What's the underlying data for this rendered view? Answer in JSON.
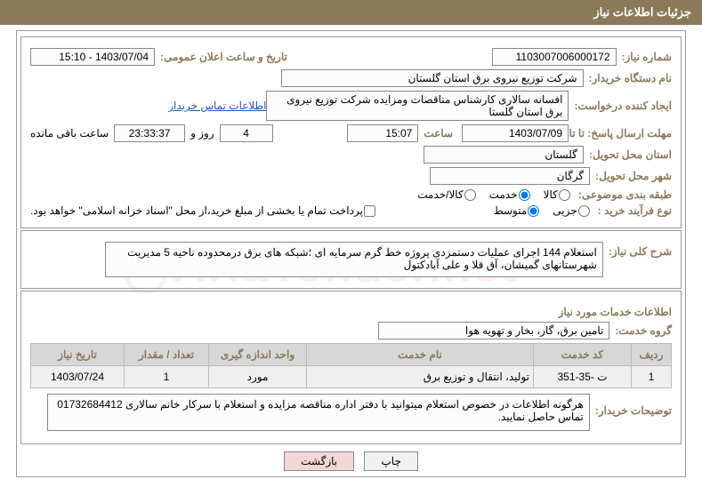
{
  "header": {
    "title": "جزئیات اطلاعات نیاز"
  },
  "main": {
    "need_no_label": "شماره نیاز:",
    "need_no": "1103007006000172",
    "announce_label": "تاریخ و ساعت اعلان عمومی:",
    "announce": "1403/07/04 - 15:10",
    "buyer_org_label": "نام دستگاه خریدار:",
    "buyer_org": "شرکت توزیع نیروی برق استان گلستان",
    "requester_label": "ایجاد کننده درخواست:",
    "requester": "افسانه سالاری کارشناس مناقصات ومزایده شرکت توزیع نیروی برق استان گلستا",
    "contact_link": "اطلاعات تماس خریدار",
    "deadline_label": "مهلت ارسال پاسخ: تا تاریخ:",
    "deadline_date": "1403/07/09",
    "time_label": "ساعت",
    "deadline_time": "15:07",
    "remaining_days": "4",
    "days_and": "روز و",
    "remaining_time": "23:33:37",
    "remaining_label": "ساعت باقی مانده",
    "province_label": "استان محل تحویل:",
    "province": "گلستان",
    "city_label": "شهر محل تحویل:",
    "city": "گرگان",
    "category_label": "طبقه بندی موضوعی:",
    "cat_goods": "کالا",
    "cat_service": "خدمت",
    "cat_goods_service": "کالا/خدمت",
    "process_label": "نوع فرآیند خرید :",
    "proc_minor": "جزیی",
    "proc_medium": "متوسط",
    "payment_note": "پرداخت تمام یا بخشی از مبلغ خرید،از محل \"اسناد خزانه اسلامی\" خواهد بود.",
    "overview_label": "شرح کلی نیاز:",
    "overview": "استعلام 144 اجرای عملیات دستمزدی پروژه خط گرم سرمایه ای  ؛شبکه های برق درمحدوده ناحیه 5 مدیریت شهرستانهای گمیشان، آق قلا و علی آبادکتول"
  },
  "services": {
    "section_title": "اطلاعات خدمات مورد نیاز",
    "group_label": "گروه خدمت:",
    "group": "تامین برق، گاز، بخار و تهویه هوا",
    "columns": [
      "ردیف",
      "کد خدمت",
      "نام خدمت",
      "واحد اندازه گیری",
      "تعداد / مقدار",
      "تاریخ نیاز"
    ],
    "col_widths": [
      "45px",
      "110px",
      "auto",
      "110px",
      "95px",
      "105px"
    ],
    "rows": [
      [
        "1",
        "ت -35-351",
        "تولید، انتقال و توزیع برق",
        "مورد",
        "1",
        "1403/07/24"
      ]
    ],
    "buyer_notes_label": "توضیحات خریدار:",
    "buyer_notes": "هرگونه اطلاعات در خصوص استعلام میتوانید با دفتر اداره مناقصه مزایده و استعلام  با سرکار خانم سالاری 01732684412 تماس حاصل نمایید."
  },
  "buttons": {
    "print": "چاپ",
    "back": "بازگشت"
  },
  "watermark": "AriaTender.net",
  "colors": {
    "header_bg": "#8a7a5a",
    "label_color": "#8a7a5a",
    "link": "#1a5bbf",
    "th_bg": "#d7d7d7",
    "td_bg": "#efefef"
  }
}
